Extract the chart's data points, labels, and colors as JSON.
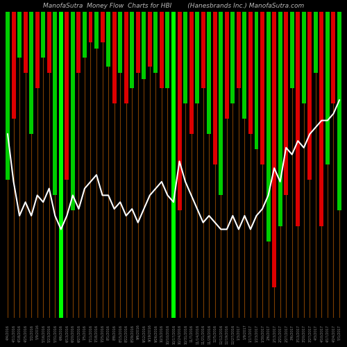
{
  "title": "ManofaSutra  Money Flow  Charts for HBI        (Hanesbrands Inc.) ManofaSutra.com",
  "bg_color": "#000000",
  "bar_width": 0.7,
  "line_color": "#ffffff",
  "green_color": "#00ff00",
  "red_color": "#dd0000",
  "green_bar_color": "#00cc00",
  "orange_line_color": "#8B4500",
  "bright_green_indices": [
    9,
    28
  ],
  "dates": [
    "4/4/2016",
    "4/11/2016",
    "4/18/2016",
    "4/25/2016",
    "5/2/2016",
    "5/9/2016",
    "5/16/2016",
    "5/23/2016",
    "5/31/2016",
    "6/6/2016",
    "6/13/2016",
    "6/20/2016",
    "6/27/2016",
    "7/5/2016",
    "7/11/2016",
    "7/18/2016",
    "7/25/2016",
    "8/1/2016",
    "8/8/2016",
    "8/15/2016",
    "8/22/2016",
    "8/29/2016",
    "9/6/2016",
    "9/12/2016",
    "9/19/2016",
    "9/26/2016",
    "10/3/2016",
    "10/10/2016",
    "10/17/2016",
    "10/24/2016",
    "10/31/2016",
    "11/7/2016",
    "11/14/2016",
    "11/21/2016",
    "11/28/2016",
    "12/5/2016",
    "12/12/2016",
    "12/19/2016",
    "12/27/2016",
    "1/3/2017",
    "1/9/2017",
    "1/17/2017",
    "1/23/2017",
    "1/30/2017",
    "2/6/2017",
    "2/13/2017",
    "2/21/2017",
    "2/27/2017",
    "3/6/2017",
    "3/13/2017",
    "3/20/2017",
    "3/27/2017",
    "4/3/2017",
    "4/10/2017",
    "4/17/2017",
    "4/24/2017",
    "5/1/2017"
  ],
  "bar_heights": [
    55,
    35,
    15,
    20,
    40,
    25,
    15,
    20,
    60,
    100,
    55,
    65,
    20,
    15,
    10,
    12,
    10,
    18,
    30,
    20,
    30,
    25,
    20,
    22,
    18,
    20,
    25,
    25,
    100,
    65,
    30,
    40,
    30,
    25,
    40,
    50,
    60,
    35,
    30,
    25,
    35,
    40,
    45,
    50,
    75,
    90,
    70,
    60,
    25,
    70,
    30,
    55,
    20,
    70,
    50,
    30,
    65
  ],
  "bar_colors": [
    "green",
    "red",
    "green",
    "red",
    "green",
    "red",
    "green",
    "red",
    "green",
    "bright_green",
    "red",
    "green",
    "red",
    "green",
    "red",
    "green",
    "red",
    "green",
    "red",
    "green",
    "red",
    "green",
    "red",
    "green",
    "red",
    "green",
    "red",
    "green",
    "bright_green",
    "red",
    "green",
    "red",
    "green",
    "red",
    "green",
    "red",
    "green",
    "red",
    "green",
    "red",
    "green",
    "red",
    "green",
    "red",
    "green",
    "red",
    "green",
    "red",
    "green",
    "red",
    "green",
    "red",
    "green",
    "red",
    "green",
    "red",
    "green"
  ],
  "line_values": [
    0.72,
    0.65,
    0.6,
    0.62,
    0.6,
    0.63,
    0.62,
    0.64,
    0.6,
    0.58,
    0.6,
    0.63,
    0.61,
    0.64,
    0.65,
    0.66,
    0.63,
    0.63,
    0.61,
    0.62,
    0.6,
    0.61,
    0.59,
    0.61,
    0.63,
    0.64,
    0.65,
    0.63,
    0.62,
    0.68,
    0.65,
    0.63,
    0.61,
    0.59,
    0.6,
    0.59,
    0.58,
    0.58,
    0.6,
    0.58,
    0.6,
    0.58,
    0.6,
    0.61,
    0.63,
    0.67,
    0.65,
    0.7,
    0.69,
    0.71,
    0.7,
    0.72,
    0.73,
    0.74,
    0.74,
    0.75,
    0.77
  ],
  "ylim_min": 0,
  "ylim_max": 100,
  "line_ylim_min": 0.45,
  "line_ylim_max": 0.9
}
